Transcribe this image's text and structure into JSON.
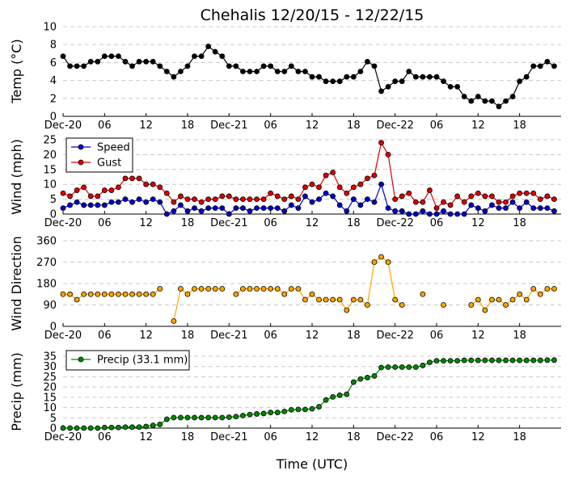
{
  "title": "Chehalis 12/20/15 - 12/22/15",
  "xlabel": "Time (UTC)",
  "x_tick_labels": [
    "Dec-20",
    "06",
    "12",
    "18",
    "Dec-21",
    "06",
    "12",
    "18",
    "Dec-22",
    "06",
    "12",
    "18"
  ],
  "x_tick_hours": [
    0,
    6,
    12,
    18,
    24,
    30,
    36,
    42,
    48,
    54,
    60,
    66
  ],
  "x_range_hours": [
    0,
    72
  ],
  "chart_data": [
    {
      "type": "line",
      "ylabel": "Temp (°C)",
      "ylim": [
        0,
        10
      ],
      "yticks": [
        0,
        2,
        4,
        6,
        8,
        10
      ],
      "grid": "horizontal dashed",
      "x_start_hour": 0,
      "x_step_hours": 1,
      "series": [
        {
          "color": "#000000",
          "values": [
            6.7,
            5.6,
            5.6,
            5.6,
            6.1,
            6.1,
            6.7,
            6.7,
            6.7,
            6.1,
            5.6,
            6.1,
            6.1,
            6.1,
            5.6,
            5.0,
            4.4,
            5.0,
            5.6,
            6.7,
            6.7,
            7.8,
            7.2,
            6.7,
            5.6,
            5.6,
            5.0,
            5.0,
            5.0,
            5.6,
            5.6,
            5.0,
            5.0,
            5.6,
            5.0,
            5.0,
            4.4,
            4.4,
            3.9,
            3.9,
            3.9,
            4.4,
            4.4,
            5.0,
            6.1,
            5.6,
            2.8,
            3.3,
            3.9,
            3.9,
            5.0,
            4.4,
            4.4,
            4.4,
            4.4,
            3.9,
            3.3,
            3.3,
            2.2,
            1.7,
            2.2,
            1.7,
            1.7,
            1.1,
            1.7,
            2.2,
            3.9,
            4.4,
            5.6,
            5.6,
            6.1,
            5.6
          ]
        }
      ]
    },
    {
      "type": "line",
      "ylabel": "Wind (mph)",
      "ylim": [
        0,
        25
      ],
      "yticks": [
        0,
        5,
        10,
        15,
        20,
        25
      ],
      "grid": "horizontal dashed",
      "legend": "top-left",
      "x_start_hour": 0,
      "x_step_hours": 1,
      "series": [
        {
          "name": "Speed",
          "color": "#0000cc",
          "values": [
            2,
            3,
            4,
            3,
            3,
            3,
            3,
            4,
            4,
            5,
            4,
            5,
            4,
            5,
            4,
            0,
            1,
            3,
            1,
            2,
            1,
            2,
            2,
            2,
            0,
            2,
            2,
            1,
            2,
            2,
            2,
            2,
            1,
            3,
            2,
            6,
            4,
            5,
            7,
            6,
            3,
            1,
            5,
            3,
            5,
            4,
            10,
            2,
            1,
            1,
            0,
            0,
            1,
            0,
            0,
            1,
            0,
            0,
            0,
            3,
            2,
            1,
            3,
            2,
            2,
            4,
            2,
            4,
            2,
            2,
            2,
            1
          ]
        },
        {
          "name": "Gust",
          "color": "#dd0000",
          "values": [
            7,
            6,
            8,
            9,
            6,
            6,
            8,
            8,
            9,
            12,
            12,
            12,
            10,
            10,
            9,
            7,
            4,
            6,
            5,
            5,
            4,
            5,
            5,
            6,
            6,
            5,
            5,
            5,
            5,
            5,
            7,
            6,
            5,
            6,
            5,
            9,
            10,
            9,
            13,
            14,
            9,
            7,
            9,
            10,
            12,
            13,
            24,
            20,
            5,
            6,
            7,
            4,
            4,
            8,
            2,
            4,
            3,
            6,
            4,
            6,
            7,
            6,
            6,
            4,
            4,
            6,
            7,
            7,
            7,
            5,
            6,
            5
          ]
        }
      ]
    },
    {
      "type": "scatter",
      "ylabel": "Wind Direction",
      "ylim": [
        0,
        360
      ],
      "yticks": [
        0,
        90,
        180,
        270,
        360
      ],
      "grid": "horizontal dashed",
      "x_start_hour": 0,
      "x_step_hours": 1,
      "series": [
        {
          "color": "#ffa500",
          "values": [
            135,
            135,
            112,
            135,
            135,
            135,
            135,
            135,
            135,
            135,
            135,
            135,
            135,
            135,
            158,
            null,
            22,
            158,
            135,
            158,
            158,
            158,
            158,
            158,
            null,
            135,
            158,
            158,
            158,
            158,
            158,
            158,
            135,
            158,
            158,
            112,
            135,
            112,
            112,
            112,
            112,
            68,
            112,
            112,
            90,
            270,
            292,
            270,
            112,
            90,
            null,
            null,
            135,
            null,
            null,
            90,
            null,
            null,
            null,
            90,
            112,
            68,
            112,
            112,
            90,
            112,
            135,
            112,
            158,
            135,
            158,
            158
          ]
        }
      ]
    },
    {
      "type": "line",
      "ylabel": "Precip (mm)",
      "ylim": [
        0,
        35
      ],
      "yticks": [
        0,
        5,
        10,
        15,
        20,
        25,
        30,
        35
      ],
      "grid": "horizontal dashed",
      "legend": "top-left",
      "x_start_hour": 0,
      "x_step_hours": 1,
      "series": [
        {
          "name": "Precip (33.1 mm)",
          "color": "#008800",
          "values": [
            0,
            0,
            0,
            0,
            0,
            0,
            0.3,
            0.3,
            0.3,
            0.5,
            0.5,
            0.5,
            0.8,
            1.3,
            1.8,
            4.3,
            5.1,
            5.1,
            5.1,
            5.1,
            5.1,
            5.1,
            5.1,
            5.1,
            5.3,
            5.6,
            6.1,
            6.6,
            6.9,
            7.1,
            7.6,
            7.6,
            8.1,
            8.9,
            9.1,
            9.1,
            9.4,
            10.4,
            13.7,
            15.2,
            16.0,
            16.5,
            22.4,
            23.9,
            24.6,
            25.4,
            29.5,
            29.7,
            29.7,
            29.7,
            29.7,
            29.7,
            30.5,
            32.0,
            32.8,
            32.8,
            32.8,
            32.8,
            33.0,
            33.0,
            33.0,
            33.0,
            33.0,
            33.0,
            33.0,
            33.0,
            33.0,
            33.0,
            33.0,
            33.0,
            33.1,
            33.1
          ]
        }
      ]
    }
  ]
}
